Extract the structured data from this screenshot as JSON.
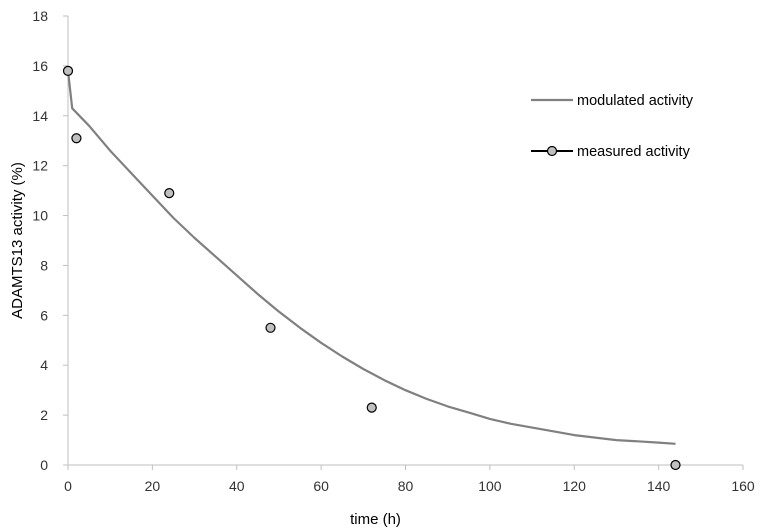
{
  "chart_data": {
    "type": "scatter",
    "title": "",
    "xlabel": "time (h)",
    "ylabel": "ADAMTS13 activity (%)",
    "xlim": [
      0,
      160
    ],
    "ylim": [
      0,
      18
    ],
    "x_ticks": [
      0,
      20,
      40,
      60,
      80,
      100,
      120,
      140,
      160
    ],
    "y_ticks": [
      0,
      2,
      4,
      6,
      8,
      10,
      12,
      14,
      16,
      18
    ],
    "grid": false,
    "legend_position": "right",
    "series": [
      {
        "name": "modulated activity",
        "kind": "line",
        "color": "#808080",
        "x": [
          0,
          1,
          5,
          10,
          15,
          20,
          25,
          30,
          35,
          40,
          45,
          50,
          55,
          60,
          65,
          70,
          75,
          80,
          85,
          90,
          95,
          100,
          105,
          110,
          115,
          120,
          125,
          130,
          135,
          140,
          144
        ],
        "y": [
          15.8,
          14.3,
          13.6,
          12.6,
          11.7,
          10.8,
          9.9,
          9.1,
          8.35,
          7.6,
          6.85,
          6.15,
          5.5,
          4.9,
          4.35,
          3.85,
          3.4,
          3.0,
          2.65,
          2.35,
          2.1,
          1.85,
          1.65,
          1.5,
          1.35,
          1.2,
          1.1,
          1.0,
          0.95,
          0.9,
          0.85
        ]
      },
      {
        "name": "measured activity",
        "kind": "scatter",
        "color": "#c0c0c0",
        "edge_color": "#000000",
        "x": [
          0,
          2,
          24,
          48,
          72,
          144
        ],
        "y": [
          15.8,
          13.1,
          10.9,
          5.5,
          2.3,
          0.0
        ]
      }
    ]
  }
}
